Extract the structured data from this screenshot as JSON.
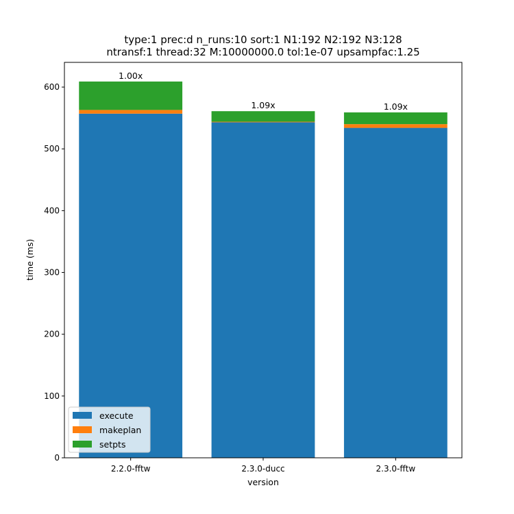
{
  "chart_data": {
    "type": "bar",
    "stacked": true,
    "title_lines": [
      "type:1 prec:d n_runs:10 sort:1 N1:192 N2:192 N3:128",
      "ntransf:1 thread:32 M:10000000.0 tol:1e-07 upsampfac:1.25"
    ],
    "xlabel": "version",
    "ylabel": "time (ms)",
    "categories": [
      "2.2.0-fftw",
      "2.3.0-ducc",
      "2.3.0-fftw"
    ],
    "series": [
      {
        "name": "execute",
        "color": "#1f77b4",
        "values": [
          557,
          543,
          534
        ]
      },
      {
        "name": "makeplan",
        "color": "#ff7f0e",
        "values": [
          6,
          1,
          6
        ]
      },
      {
        "name": "setpts",
        "color": "#2ca02c",
        "values": [
          46,
          17,
          19
        ]
      }
    ],
    "bar_labels": [
      "1.00x",
      "1.09x",
      "1.09x"
    ],
    "ylim": [
      0,
      640
    ],
    "yticks": [
      0,
      100,
      200,
      300,
      400,
      500,
      600
    ],
    "grid": false,
    "legend_position": "lower-left"
  }
}
